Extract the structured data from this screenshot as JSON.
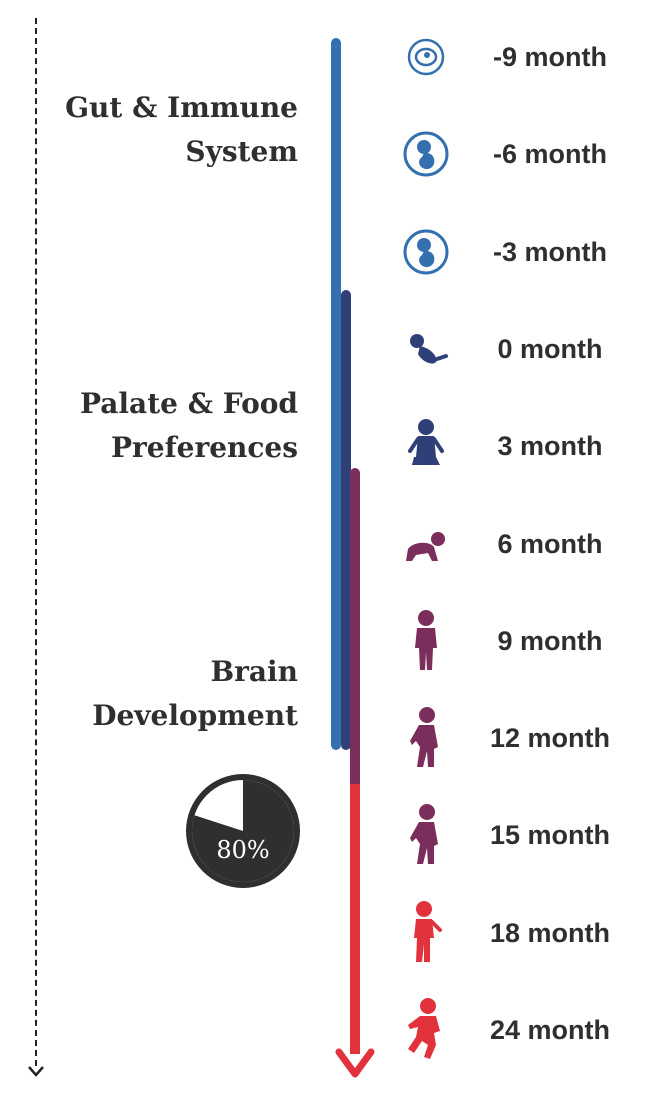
{
  "phases": [
    {
      "title_line1": "Gut & Immune",
      "title_line2": "System",
      "color": "#3470b0"
    },
    {
      "title_line1": "Palate & Food",
      "title_line2": "Preferences",
      "color": "#2f3f78"
    },
    {
      "title_line1": "Brain",
      "title_line2": "Development",
      "color": "#7b2d5c"
    }
  ],
  "after_color": "#e2323c",
  "pie": {
    "percent": 80,
    "label": "80%",
    "fill": "#2f2f2f"
  },
  "timeline": [
    {
      "label": "-9 month",
      "icon": "embryo-icon",
      "color": "#3470b0"
    },
    {
      "label": "-6 month",
      "icon": "fetus-icon",
      "color": "#3470b0"
    },
    {
      "label": "-3 month",
      "icon": "fetus-icon",
      "color": "#3470b0"
    },
    {
      "label": "0 month",
      "icon": "newborn-icon",
      "color": "#2f3f78"
    },
    {
      "label": "3 month",
      "icon": "sitting-baby-icon",
      "color": "#2f3f78"
    },
    {
      "label": "6 month",
      "icon": "crawling-baby-icon",
      "color": "#7b2d5c"
    },
    {
      "label": "9 month",
      "icon": "standing-baby-icon",
      "color": "#7b2d5c"
    },
    {
      "label": "12 month",
      "icon": "toddler-icon",
      "color": "#7b2d5c"
    },
    {
      "label": "15 month",
      "icon": "toddler-icon",
      "color": "#7b2d5c"
    },
    {
      "label": "18 month",
      "icon": "walking-child-icon",
      "color": "#e2323c"
    },
    {
      "label": "24 month",
      "icon": "running-child-icon",
      "color": "#e2323c"
    }
  ]
}
